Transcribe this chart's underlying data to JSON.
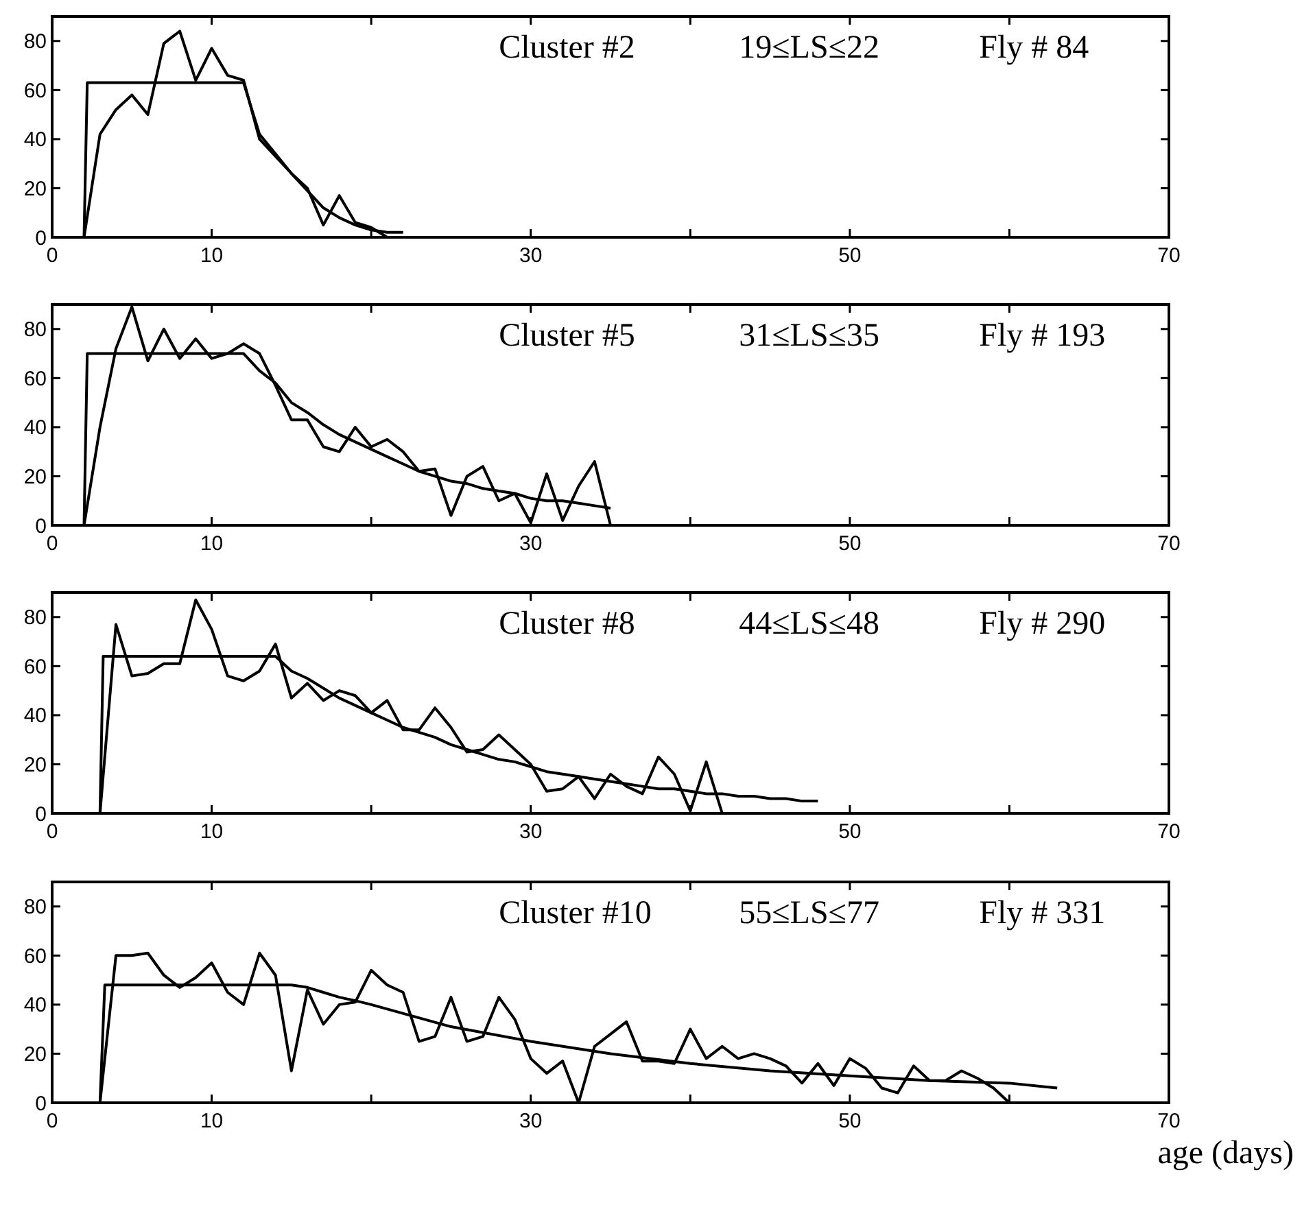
{
  "chart_data": [
    {
      "type": "line",
      "xlim": [
        0,
        70
      ],
      "xticks": [
        0,
        10,
        {
          "value": 20,
          "label": null
        },
        30,
        {
          "value": 40,
          "label": null
        },
        50,
        {
          "value": 60,
          "label": null
        },
        70
      ],
      "ylim": [
        0,
        90
      ],
      "yticks": [
        0,
        20,
        40,
        60,
        80
      ],
      "grid": false,
      "marker": "none",
      "line_style": "solid",
      "annotations": [
        "Cluster #2",
        "19≤LS≤22",
        "Fly # 84"
      ],
      "series": [
        {
          "color": "#000000",
          "x": [
            2,
            3,
            4,
            5,
            6,
            7,
            8,
            9,
            10,
            11,
            12,
            13,
            14,
            15,
            16,
            17,
            18,
            19,
            20,
            21
          ],
          "values": [
            0,
            42,
            52,
            58,
            50,
            79,
            84,
            64,
            77,
            66,
            64,
            40,
            33,
            26,
            20,
            5,
            17,
            6,
            4,
            0
          ]
        },
        {
          "color": "#000000",
          "x": [
            2,
            2.2,
            12,
            13,
            14,
            15,
            16,
            17,
            18,
            19,
            20,
            21,
            22
          ],
          "values": [
            0,
            63,
            63,
            42,
            34,
            26,
            19,
            12,
            8,
            5,
            3,
            2,
            2
          ]
        }
      ]
    },
    {
      "type": "line",
      "xlim": [
        0,
        70
      ],
      "xticks": [
        0,
        10,
        {
          "value": 20,
          "label": null
        },
        30,
        {
          "value": 40,
          "label": null
        },
        50,
        {
          "value": 60,
          "label": null
        },
        70
      ],
      "ylim": [
        0,
        90
      ],
      "yticks": [
        0,
        20,
        40,
        60,
        80
      ],
      "grid": false,
      "marker": "none",
      "line_style": "solid",
      "annotations": [
        "Cluster #5",
        "31≤LS≤35",
        "Fly # 193"
      ],
      "series": [
        {
          "color": "#000000",
          "x": [
            2,
            3,
            4,
            5,
            6,
            7,
            8,
            9,
            10,
            11,
            12,
            13,
            14,
            15,
            16,
            17,
            18,
            19,
            20,
            21,
            22,
            23,
            24,
            25,
            26,
            27,
            28,
            29,
            30,
            31,
            32,
            33,
            34,
            35
          ],
          "values": [
            0,
            40,
            72,
            89,
            67,
            80,
            68,
            76,
            68,
            70,
            74,
            70,
            57,
            43,
            43,
            32,
            30,
            40,
            32,
            35,
            30,
            22,
            23,
            4,
            20,
            24,
            10,
            13,
            1,
            21,
            2,
            16,
            26,
            0
          ]
        },
        {
          "color": "#000000",
          "x": [
            2,
            2.2,
            12,
            13,
            14,
            15,
            16,
            17,
            18,
            19,
            20,
            21,
            22,
            23,
            24,
            25,
            26,
            27,
            28,
            29,
            30,
            31,
            32,
            33,
            34,
            35
          ],
          "values": [
            0,
            70,
            70,
            63,
            58,
            50,
            46,
            41,
            37,
            34,
            31,
            28,
            25,
            22,
            20,
            18,
            17,
            15,
            14,
            13,
            11,
            10,
            10,
            9,
            8,
            7
          ]
        }
      ]
    },
    {
      "type": "line",
      "xlim": [
        0,
        70
      ],
      "xticks": [
        0,
        10,
        {
          "value": 20,
          "label": null
        },
        30,
        {
          "value": 40,
          "label": null
        },
        50,
        {
          "value": 60,
          "label": null
        },
        70
      ],
      "ylim": [
        0,
        90
      ],
      "yticks": [
        0,
        20,
        40,
        60,
        80
      ],
      "grid": false,
      "marker": "none",
      "line_style": "solid",
      "annotations": [
        "Cluster #8",
        "44≤LS≤48",
        "Fly # 290"
      ],
      "series": [
        {
          "color": "#000000",
          "x": [
            3,
            4,
            5,
            6,
            7,
            8,
            9,
            10,
            11,
            12,
            13,
            14,
            15,
            16,
            17,
            18,
            19,
            20,
            21,
            22,
            23,
            24,
            25,
            26,
            27,
            28,
            29,
            30,
            31,
            32,
            33,
            34,
            35,
            36,
            37,
            38,
            39,
            40,
            41,
            42
          ],
          "values": [
            0,
            77,
            56,
            57,
            61,
            61,
            87,
            75,
            56,
            54,
            58,
            69,
            47,
            53,
            46,
            50,
            48,
            41,
            46,
            34,
            34,
            43,
            35,
            25,
            26,
            32,
            26,
            20,
            9,
            10,
            15,
            6,
            16,
            11,
            8,
            23,
            16,
            1,
            21,
            0
          ]
        },
        {
          "color": "#000000",
          "x": [
            3,
            3.2,
            14,
            15,
            16,
            17,
            18,
            19,
            20,
            21,
            22,
            23,
            24,
            25,
            26,
            27,
            28,
            29,
            30,
            31,
            32,
            33,
            34,
            35,
            36,
            37,
            38,
            39,
            40,
            41,
            42,
            43,
            44,
            45,
            46,
            47,
            48
          ],
          "values": [
            0,
            64,
            64,
            58,
            55,
            51,
            47,
            44,
            41,
            38,
            35,
            33,
            31,
            28,
            26,
            24,
            22,
            21,
            19,
            17,
            16,
            15,
            14,
            13,
            12,
            11,
            10,
            10,
            9,
            8,
            8,
            7,
            7,
            6,
            6,
            5,
            5
          ]
        }
      ]
    },
    {
      "type": "line",
      "xlim": [
        0,
        70
      ],
      "xticks": [
        0,
        10,
        {
          "value": 20,
          "label": null
        },
        30,
        {
          "value": 40,
          "label": null
        },
        50,
        {
          "value": 60,
          "label": null
        },
        70
      ],
      "ylim": [
        0,
        90
      ],
      "yticks": [
        0,
        20,
        40,
        60,
        80
      ],
      "grid": false,
      "marker": "none",
      "line_style": "solid",
      "annotations": [
        "Cluster #10",
        "55≤LS≤77",
        "Fly # 331"
      ],
      "xlabel": "age (days)",
      "series": [
        {
          "color": "#000000",
          "x": [
            3,
            4,
            5,
            6,
            7,
            8,
            9,
            10,
            11,
            12,
            13,
            14,
            15,
            16,
            17,
            18,
            19,
            20,
            21,
            22,
            23,
            24,
            25,
            26,
            27,
            28,
            29,
            30,
            31,
            32,
            33,
            34,
            35,
            36,
            37,
            38,
            39,
            40,
            41,
            42,
            43,
            44,
            45,
            46,
            47,
            48,
            49,
            50,
            51,
            52,
            53,
            54,
            55,
            56,
            57,
            58,
            59,
            60
          ],
          "values": [
            0,
            60,
            60,
            61,
            52,
            47,
            51,
            57,
            45,
            40,
            61,
            52,
            13,
            46,
            32,
            40,
            41,
            54,
            48,
            45,
            25,
            27,
            43,
            25,
            27,
            43,
            34,
            18,
            12,
            17,
            0,
            23,
            28,
            33,
            17,
            17,
            16,
            30,
            18,
            23,
            18,
            20,
            18,
            15,
            8,
            16,
            7,
            18,
            14,
            6,
            4,
            15,
            9,
            9,
            13,
            10,
            6,
            0
          ]
        },
        {
          "color": "#000000",
          "x": [
            3,
            3.3,
            15,
            16,
            17,
            18,
            19,
            20,
            25,
            30,
            35,
            40,
            45,
            50,
            55,
            60,
            63
          ],
          "values": [
            0,
            48,
            48,
            47,
            45,
            43,
            41.6,
            40,
            31,
            25,
            20,
            16,
            13,
            11,
            9,
            8,
            6
          ]
        }
      ]
    }
  ]
}
